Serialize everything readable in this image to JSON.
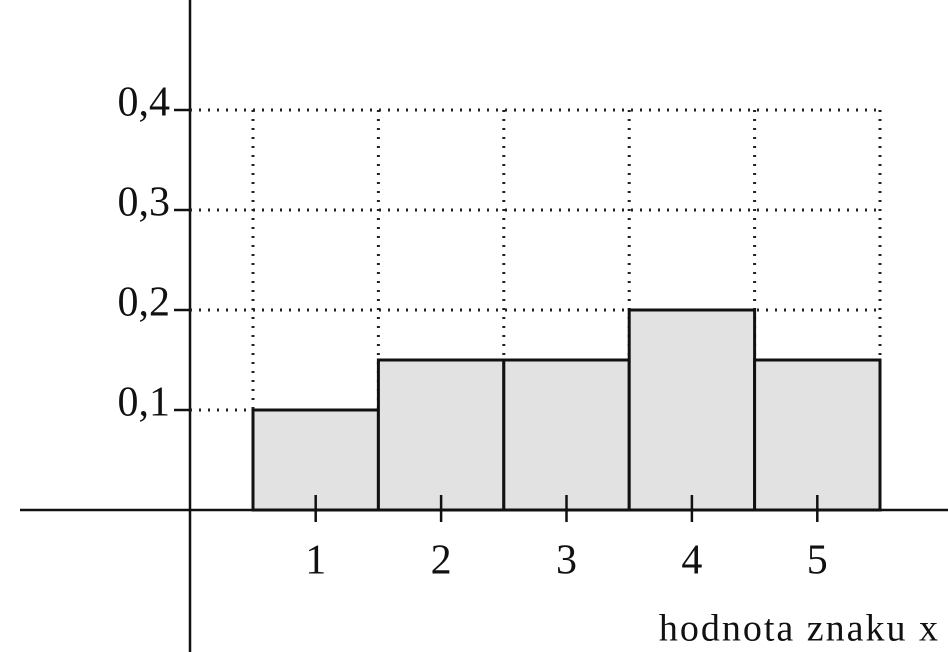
{
  "chart_data": {
    "type": "bar",
    "categories": [
      "1",
      "2",
      "3",
      "4",
      "5"
    ],
    "values": [
      0.1,
      0.15,
      0.15,
      0.2,
      0.15
    ],
    "color": "#e2e2e2",
    "ylim": [
      0,
      0.4
    ],
    "yticks": [
      {
        "value": 0.1,
        "label": "0,1"
      },
      {
        "value": 0.2,
        "label": "0,2"
      },
      {
        "value": 0.3,
        "label": "0,3"
      },
      {
        "value": 0.4,
        "label": "0,4"
      }
    ],
    "grid": true,
    "x_label": "hodnota znaku x"
  }
}
